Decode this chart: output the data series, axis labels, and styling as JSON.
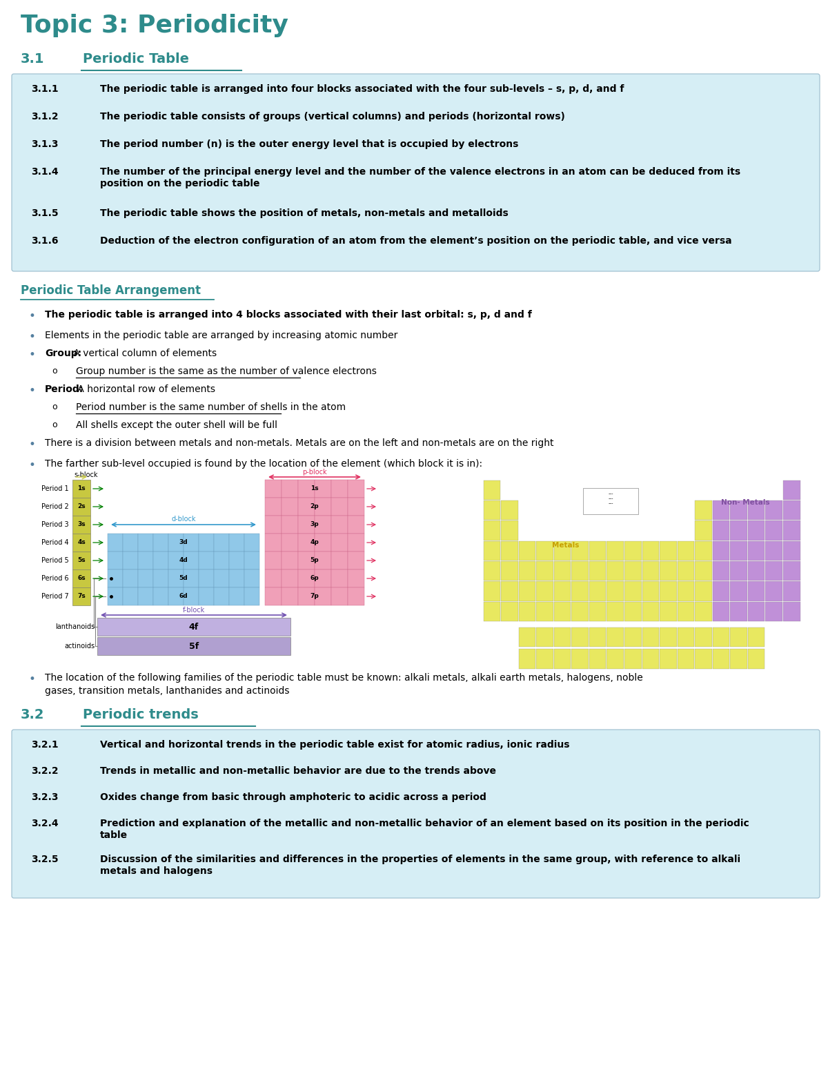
{
  "title": "Topic 3: Periodicity",
  "title_color": "#2E8B8B",
  "section_31_label": "3.1",
  "section_31_title": "Periodic Table",
  "section_color": "#2E8B8B",
  "table_bg": "#D6EEF5",
  "table_rows": [
    {
      "num": "3.1.1",
      "text": "The periodic table is arranged into four blocks associated with the four sub-levels – s, p, d, and f"
    },
    {
      "num": "3.1.2",
      "text": "The periodic table consists of groups (vertical columns) and periods (horizontal rows)"
    },
    {
      "num": "3.1.3",
      "text": "The period number (n) is the outer energy level that is occupied by electrons"
    },
    {
      "num": "3.1.4",
      "text": "The number of the principal energy level and the number of the valence electrons in an atom can be deduced from its\nposition on the periodic table"
    },
    {
      "num": "3.1.5",
      "text": "The periodic table shows the position of metals, non-metals and metalloids"
    },
    {
      "num": "3.1.6",
      "text": "Deduction of the electron configuration of an atom from the element’s position on the periodic table, and vice versa"
    }
  ],
  "subsection_title": "Periodic Table Arrangement",
  "location_bullet": "The location of the following families of the periodic table must be known: alkali metals, alkali earth metals, halogens, noble\ngases, transition metals, lanthanides and actinoids",
  "section_32_label": "3.2",
  "section_32_title": "Periodic trends",
  "table2_rows": [
    {
      "num": "3.2.1",
      "text": "Vertical and horizontal trends in the periodic table exist for atomic radius, ionic radius"
    },
    {
      "num": "3.2.2",
      "text": "Trends in metallic and non-metallic behavior are due to the trends above"
    },
    {
      "num": "3.2.3",
      "text": "Oxides change from basic through amphoteric to acidic across a period"
    },
    {
      "num": "3.2.4",
      "text": "Prediction and explanation of the metallic and non-metallic behavior of an element based on its position in the periodic\ntable"
    },
    {
      "num": "3.2.5",
      "text": "Discussion of the similarities and differences in the properties of elements in the same group, with reference to alkali\nmetals and halogens"
    }
  ],
  "s_color": "#C8C840",
  "d_color": "#90C8E8",
  "p_color": "#F0A0B8",
  "f_color": "#C0B0E0",
  "f2_color": "#B0A0D0",
  "metal_color": "#E8E860",
  "nonmetal_color": "#C090D8",
  "bullet_color": "#5580A0"
}
